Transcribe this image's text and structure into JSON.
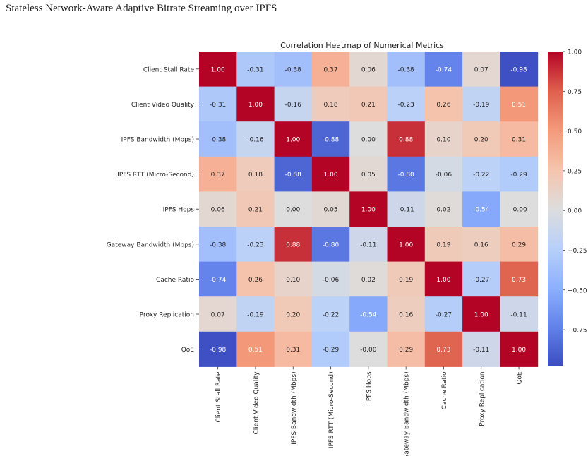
{
  "page": {
    "title": "Stateless Network-Aware Adaptive Bitrate Streaming over IPFS"
  },
  "chart_data": {
    "type": "heatmap",
    "title": "Correlation Heatmap of Numerical Metrics",
    "xlabel": "",
    "ylabel": "",
    "labels": [
      "Client Stall Rate",
      "Client Video Quality",
      "IPFS Bandwidth (Mbps)",
      "IPFS RTT (Micro-Second)",
      "IPFS Hops",
      "Gateway Bandwidth (Mbps)",
      "Cache Ratio",
      "Proxy Replication",
      "QoE"
    ],
    "matrix": [
      [
        1.0,
        -0.31,
        -0.38,
        0.37,
        0.06,
        -0.38,
        -0.74,
        0.07,
        -0.98
      ],
      [
        -0.31,
        1.0,
        -0.16,
        0.18,
        0.21,
        -0.23,
        0.26,
        -0.19,
        0.51
      ],
      [
        -0.38,
        -0.16,
        1.0,
        -0.88,
        0.0,
        0.88,
        0.1,
        0.2,
        0.31
      ],
      [
        0.37,
        0.18,
        -0.88,
        1.0,
        0.05,
        -0.8,
        -0.06,
        -0.22,
        -0.29
      ],
      [
        0.06,
        0.21,
        0.0,
        0.05,
        1.0,
        -0.11,
        0.02,
        -0.54,
        -0.0
      ],
      [
        -0.38,
        -0.23,
        0.88,
        -0.8,
        -0.11,
        1.0,
        0.19,
        0.16,
        0.29
      ],
      [
        -0.74,
        0.26,
        0.1,
        -0.06,
        0.02,
        0.19,
        1.0,
        -0.27,
        0.73
      ],
      [
        0.07,
        -0.19,
        0.2,
        -0.22,
        -0.54,
        0.16,
        -0.27,
        1.0,
        -0.11
      ],
      [
        -0.98,
        0.51,
        0.31,
        -0.29,
        -0.0,
        0.29,
        0.73,
        -0.11,
        1.0
      ]
    ],
    "cell_labels": [
      [
        "1.00",
        "-0.31",
        "-0.38",
        "0.37",
        "0.06",
        "-0.38",
        "-0.74",
        "0.07",
        "-0.98"
      ],
      [
        "-0.31",
        "1.00",
        "-0.16",
        "0.18",
        "0.21",
        "-0.23",
        "0.26",
        "-0.19",
        "0.51"
      ],
      [
        "-0.38",
        "-0.16",
        "1.00",
        "-0.88",
        "0.00",
        "0.88",
        "0.10",
        "0.20",
        "0.31"
      ],
      [
        "0.37",
        "0.18",
        "-0.88",
        "1.00",
        "0.05",
        "-0.80",
        "-0.06",
        "-0.22",
        "-0.29"
      ],
      [
        "0.06",
        "0.21",
        "0.00",
        "0.05",
        "1.00",
        "-0.11",
        "0.02",
        "-0.54",
        "-0.00"
      ],
      [
        "-0.38",
        "-0.23",
        "0.88",
        "-0.80",
        "-0.11",
        "1.00",
        "0.19",
        "0.16",
        "0.29"
      ],
      [
        "-0.74",
        "0.26",
        "0.10",
        "-0.06",
        "0.02",
        "0.19",
        "1.00",
        "-0.27",
        "0.73"
      ],
      [
        "0.07",
        "-0.19",
        "0.20",
        "-0.22",
        "-0.54",
        "0.16",
        "-0.27",
        "1.00",
        "-0.11"
      ],
      [
        "-0.98",
        "0.51",
        "0.31",
        "-0.29",
        "-0.00",
        "0.29",
        "0.73",
        "-0.11",
        "1.00"
      ]
    ],
    "colormap": "coolwarm",
    "colorbar": {
      "range": [
        -1.0,
        1.0
      ],
      "ticks": [
        1.0,
        0.75,
        0.5,
        0.25,
        0.0,
        -0.25,
        -0.5,
        -0.75
      ],
      "tick_labels": [
        "1.00",
        "0.75",
        "0.50",
        "0.25",
        "0.00",
        "−0.25",
        "−0.50",
        "−0.75"
      ]
    }
  }
}
